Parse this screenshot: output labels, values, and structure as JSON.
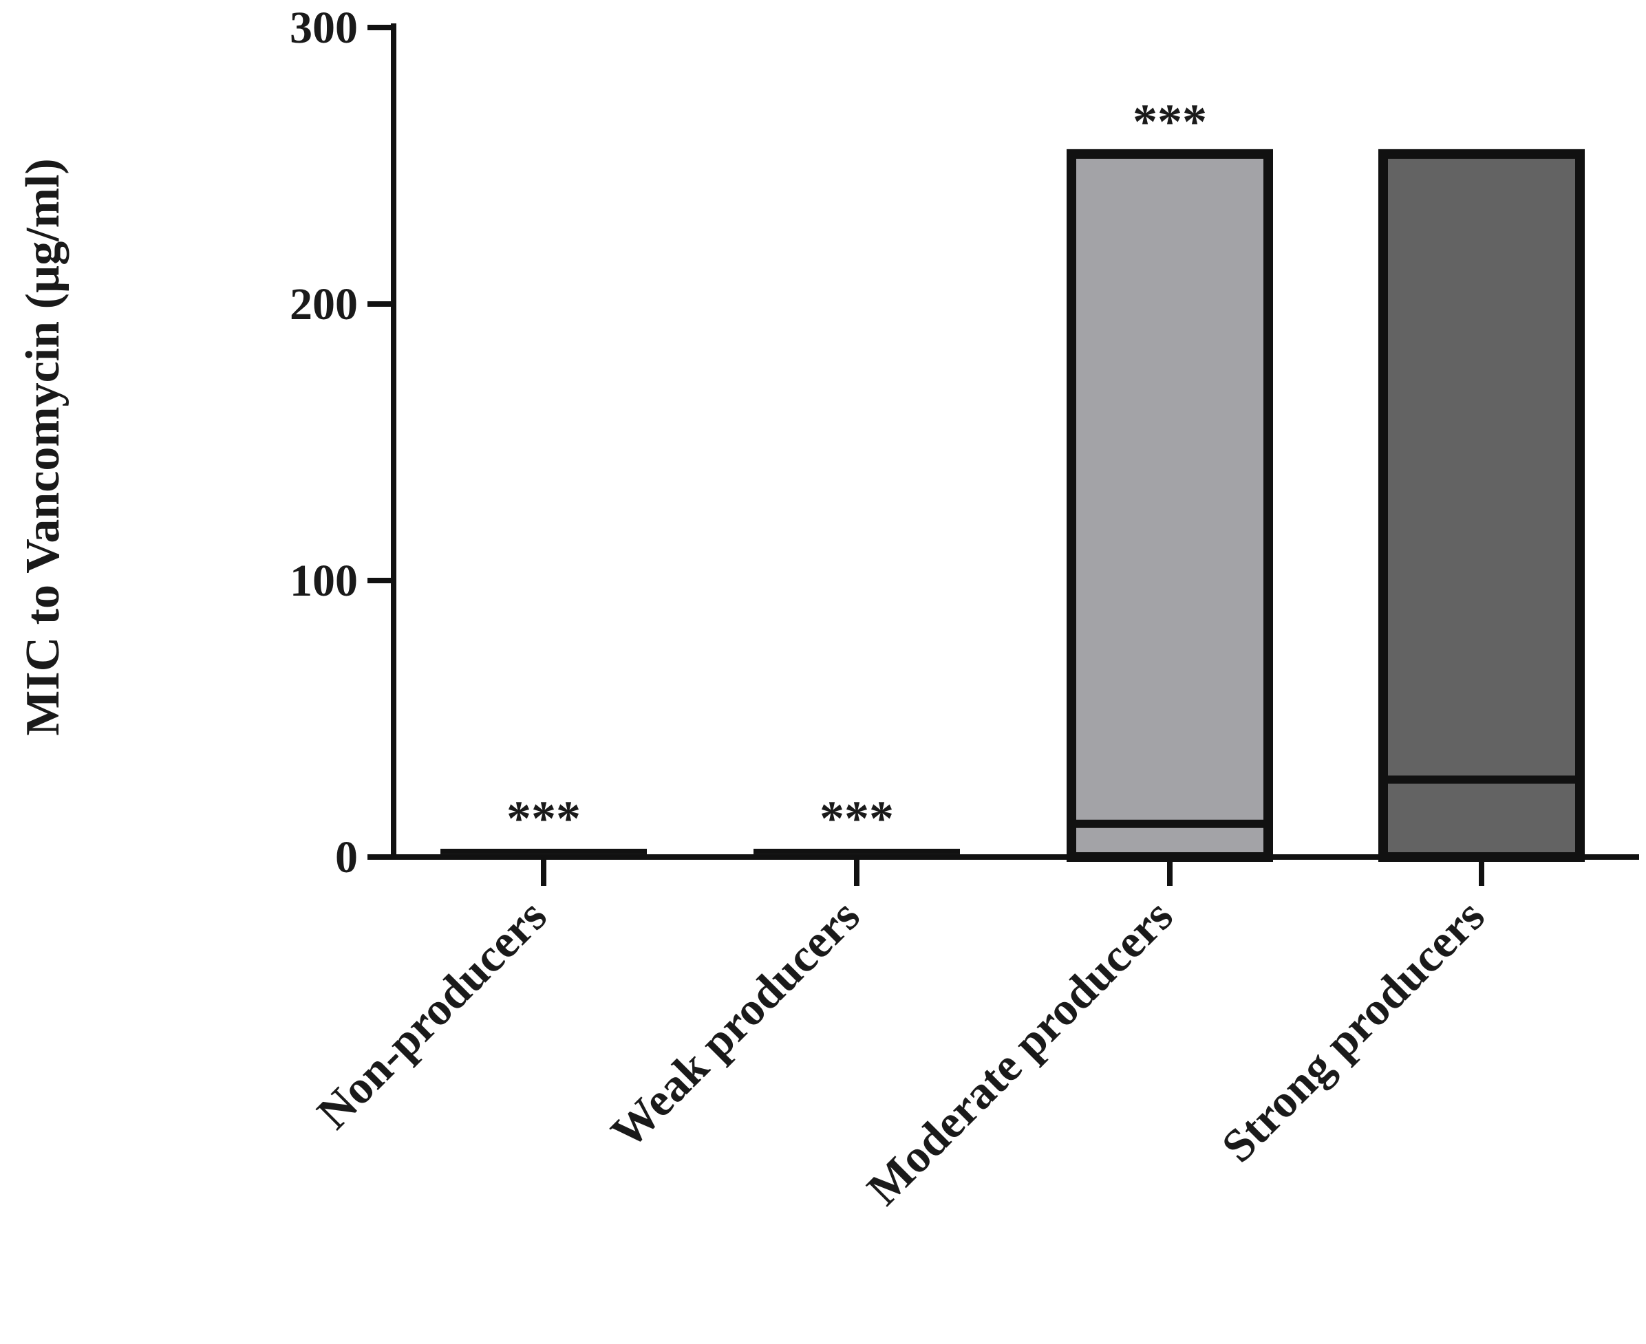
{
  "chart_data": {
    "type": "bar",
    "stacked": true,
    "ylabel": "MIC to Vancomycin (µg/ml)",
    "xlabel": "",
    "title": "",
    "ylim": [
      0,
      300
    ],
    "yticks": [
      0,
      100,
      200,
      300
    ],
    "ytick_labels": [
      "0",
      "100",
      "200",
      "300"
    ],
    "grid": false,
    "legend": "none",
    "categories": [
      "Non-producers",
      "Weak producers",
      "Moderate producers",
      "Strong producers"
    ],
    "bars": [
      {
        "category": "Non-producers",
        "lower": 2,
        "total": 2,
        "fill": "#ffffff",
        "annotation": "***"
      },
      {
        "category": "Weak producers",
        "lower": 2,
        "total": 2,
        "fill": "#ffffff",
        "annotation": "***"
      },
      {
        "category": "Moderate producers",
        "lower": 12,
        "total": 256,
        "fill": "#a3a3a7",
        "annotation": "***"
      },
      {
        "category": "Strong producers",
        "lower": 28,
        "total": 256,
        "fill": "#636363",
        "annotation": ""
      }
    ],
    "colors": {
      "outline": "#111111",
      "axis": "#111111"
    }
  }
}
